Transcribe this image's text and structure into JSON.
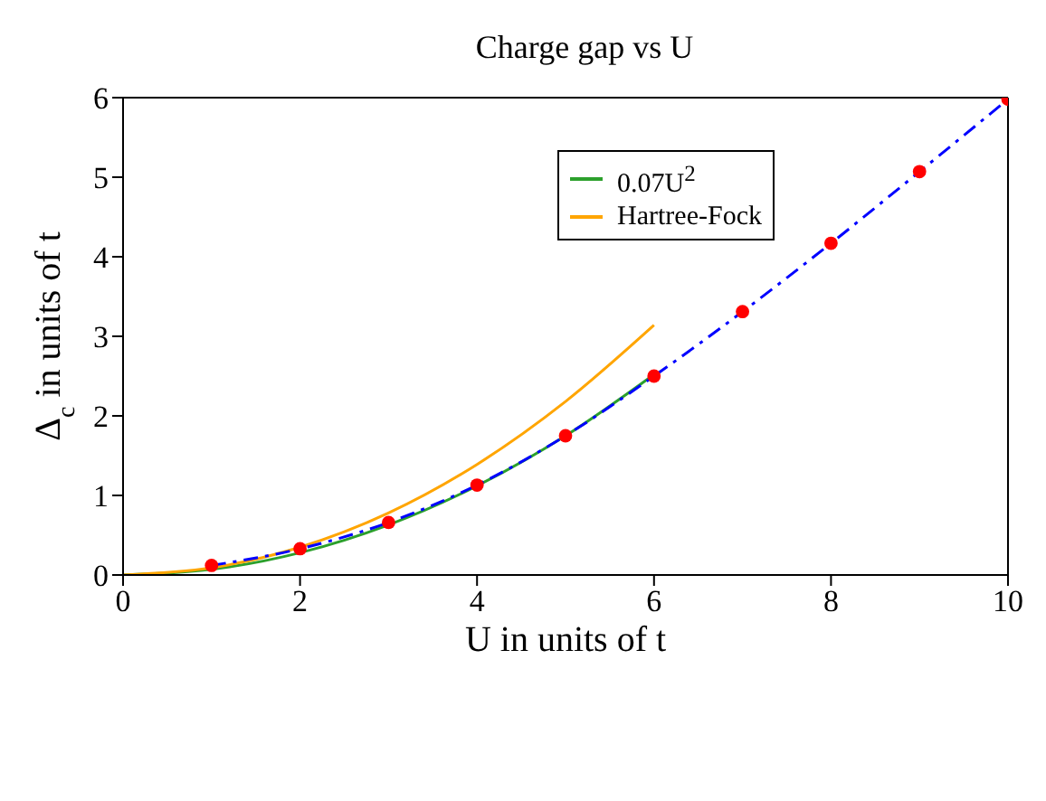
{
  "chart_data": {
    "type": "line",
    "title": "Charge gap vs U",
    "xlabel": "U in units of t",
    "ylabel": "Δ$_{c}$ in units of t",
    "xlim": [
      0,
      10
    ],
    "xticks": [
      0,
      2,
      4,
      6,
      8,
      10
    ],
    "ylim": [
      0,
      6
    ],
    "yticks": [
      0,
      1,
      2,
      3,
      4,
      5,
      6
    ],
    "grid": false,
    "legend": "top right",
    "series": [
      {
        "name": "0.07U$^{2}$",
        "color": "#2ca02c",
        "x": [
          0,
          1,
          2,
          3,
          4,
          5,
          6
        ],
        "values": [
          0,
          0.07,
          0.28,
          0.63,
          1.12,
          1.75,
          2.52
        ],
        "marker": "none",
        "line_style": "solid"
      },
      {
        "name": "Hartree-Fock",
        "color": "#ffa500",
        "x": [
          0,
          1,
          2,
          3,
          4,
          5,
          6
        ],
        "values": [
          0,
          0.09,
          0.35,
          0.78,
          1.39,
          2.18,
          3.14
        ],
        "marker": "none",
        "line_style": "solid"
      },
      {
        "color": "#0000ff",
        "x": [
          1,
          2,
          3,
          4,
          5,
          6,
          7,
          8,
          9,
          10
        ],
        "values": [
          0.12,
          0.33,
          0.66,
          1.13,
          1.75,
          2.5,
          3.31,
          4.17,
          5.07,
          5.98
        ],
        "marker": "none",
        "line_style": "dashdot"
      },
      {
        "type": "scatter",
        "color": "#ff0000",
        "x": [
          1,
          2,
          3,
          4,
          5,
          6,
          7,
          8,
          9,
          10
        ],
        "values": [
          0.12,
          0.33,
          0.66,
          1.13,
          1.75,
          2.5,
          3.31,
          4.17,
          5.07,
          5.98
        ],
        "marker": "circle"
      }
    ]
  }
}
